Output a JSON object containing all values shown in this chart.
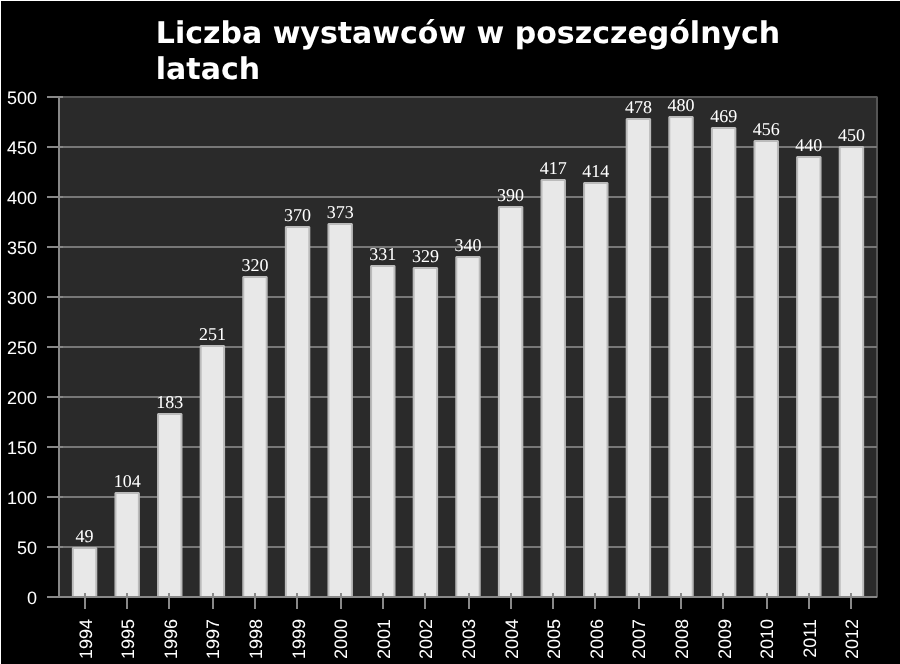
{
  "chart_data": {
    "type": "bar",
    "title": "Liczba wystawców w poszczególnych latach",
    "categories": [
      "1994",
      "1995",
      "1996",
      "1997",
      "1998",
      "1999",
      "2000",
      "2001",
      "2002",
      "2003",
      "2004",
      "2005",
      "2006",
      "2007",
      "2008",
      "2009",
      "2010",
      "2011",
      "2012"
    ],
    "values": [
      49,
      104,
      183,
      251,
      320,
      370,
      373,
      331,
      329,
      340,
      390,
      417,
      414,
      478,
      480,
      469,
      456,
      440,
      450
    ],
    "color": "#e8e8e8",
    "ylim": [
      0,
      500
    ],
    "yticks": [
      0,
      50,
      100,
      150,
      200,
      250,
      300,
      350,
      400,
      450,
      500
    ],
    "grid": "y",
    "data_labels": true
  }
}
